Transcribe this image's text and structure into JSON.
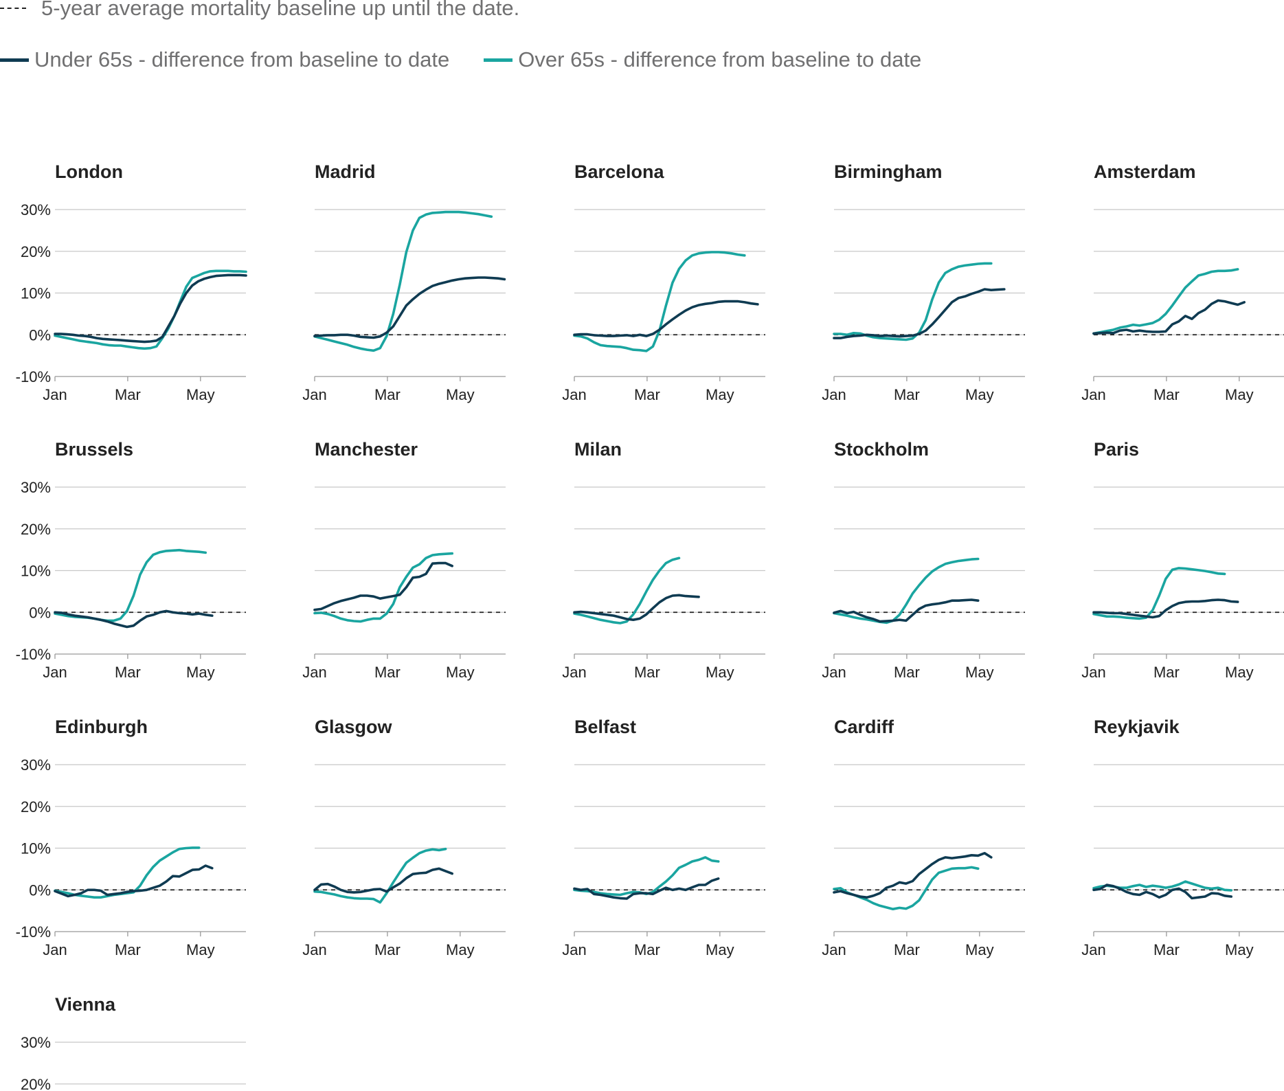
{
  "legend": {
    "baseline_label": "5-year average mortality baseline up until the date.",
    "under65_label": "Under 65s - difference from baseline to date",
    "over65_label": "Over 65s - difference from baseline to date"
  },
  "colors": {
    "under65": "#0f3b52",
    "over65": "#1aa5a0",
    "baseline": "#222222",
    "grid": "#c8c8c8"
  },
  "chart_data": {
    "type": "line",
    "layout": "small-multiples",
    "x_unit": "week of year",
    "ylim": [
      -10,
      30
    ],
    "ytick_labels": [
      "30%",
      "20%",
      "10%",
      "0%",
      "-10%"
    ],
    "yticks": [
      30,
      20,
      10,
      0,
      -10
    ],
    "xtick_labels": [
      "Jan",
      "Mar",
      "May"
    ],
    "xticks": [
      1,
      9,
      17
    ],
    "xlim": [
      1,
      22
    ],
    "grid": true,
    "series_names": [
      "Under 65s - difference from baseline to date",
      "Over 65s - difference from baseline to date"
    ],
    "panels": [
      {
        "title": "London",
        "under65": [
          0.2,
          0.2,
          0.1,
          0,
          -0.2,
          -0.3,
          -0.5,
          -0.8,
          -1,
          -1.1,
          -1.2,
          -1.3,
          -1.4,
          -1.5,
          -1.6,
          -1.7,
          -1.6,
          -1.4,
          -0.5,
          2,
          4.5,
          7.5,
          10,
          11.8,
          12.8,
          13.4,
          13.8,
          14.1,
          14.2,
          14.3,
          14.3,
          14.3,
          14.2
        ],
        "over65": [
          -0.2,
          -0.5,
          -0.8,
          -1.1,
          -1.4,
          -1.6,
          -1.8,
          -2,
          -2.3,
          -2.5,
          -2.6,
          -2.6,
          -2.8,
          -3,
          -3.2,
          -3.3,
          -3.2,
          -2.8,
          -0.8,
          1.5,
          4.5,
          8,
          11.5,
          13.6,
          14.2,
          14.8,
          15.2,
          15.3,
          15.3,
          15.3,
          15.2,
          15.2,
          15.1
        ]
      },
      {
        "title": "Madrid",
        "under65": [
          -0.3,
          -0.2,
          -0.1,
          -0.1,
          0,
          0,
          -0.2,
          -0.5,
          -0.6,
          -0.7,
          -0.4,
          0.5,
          2,
          4.5,
          7,
          8.5,
          9.8,
          10.8,
          11.7,
          12.2,
          12.6,
          13,
          13.3,
          13.5,
          13.6,
          13.7,
          13.7,
          13.6,
          13.5,
          13.3
        ],
        "over65": [
          -0.4,
          -0.8,
          -1.2,
          -1.6,
          -2,
          -2.4,
          -2.9,
          -3.3,
          -3.6,
          -3.8,
          -3.2,
          -0.3,
          5,
          12,
          19.8,
          25,
          28,
          28.8,
          29.2,
          29.3,
          29.4,
          29.4,
          29.4,
          29.3,
          29.1,
          28.9,
          28.6,
          28.3
        ],
        "note": "series ends around week 21"
      },
      {
        "title": "Barcelona",
        "under65": [
          0,
          0.1,
          0.1,
          -0.1,
          -0.2,
          -0.3,
          -0.3,
          -0.2,
          -0.1,
          -0.3,
          0,
          -0.3,
          0.2,
          1.2,
          2.5,
          3.7,
          4.8,
          5.8,
          6.6,
          7.1,
          7.4,
          7.6,
          7.9,
          8,
          8,
          8,
          7.8,
          7.5,
          7.3
        ],
        "over65": [
          -0.2,
          -0.4,
          -0.9,
          -1.8,
          -2.5,
          -2.7,
          -2.8,
          -2.9,
          -3.2,
          -3.6,
          -3.7,
          -3.9,
          -2.8,
          1,
          7,
          12.5,
          15.8,
          17.8,
          19,
          19.5,
          19.7,
          19.8,
          19.8,
          19.7,
          19.5,
          19.2,
          19
        ]
      },
      {
        "title": "Birmingham",
        "under65": [
          -0.8,
          -0.8,
          -0.5,
          -0.3,
          -0.2,
          0,
          -0.1,
          -0.3,
          -0.2,
          -0.3,
          -0.4,
          -0.3,
          -0.2,
          0.2,
          1,
          2.5,
          4.2,
          6,
          7.8,
          8.8,
          9.2,
          9.8,
          10.3,
          10.9,
          10.7,
          10.8,
          10.9
        ],
        "over65": [
          0.2,
          0.2,
          0,
          0.4,
          0.3,
          -0.2,
          -0.6,
          -0.8,
          -0.9,
          -1,
          -1.1,
          -1.2,
          -0.9,
          0.5,
          3.5,
          8.5,
          12.5,
          14.8,
          15.7,
          16.3,
          16.6,
          16.8,
          17,
          17.1,
          17.1
        ]
      },
      {
        "title": "Amsterdam",
        "under65": [
          0.3,
          0.4,
          0.5,
          0.4,
          1,
          1.2,
          0.8,
          1,
          0.8,
          0.7,
          0.7,
          0.8,
          2.5,
          3.2,
          4.5,
          3.8,
          5.2,
          6,
          7.4,
          8.2,
          8,
          7.6,
          7.2,
          7.8
        ],
        "over65": [
          0.3,
          0.6,
          0.9,
          1.2,
          1.7,
          2,
          2.4,
          2.2,
          2.5,
          2.8,
          3.6,
          5,
          7,
          9.2,
          11.3,
          12.8,
          14.2,
          14.6,
          15.1,
          15.3,
          15.3,
          15.4,
          15.7
        ]
      },
      {
        "title": "Brussels",
        "under65": [
          0,
          -0.1,
          -0.5,
          -0.8,
          -1,
          -1.2,
          -1.5,
          -1.8,
          -2.2,
          -2.7,
          -3.1,
          -3.5,
          -3.2,
          -2,
          -1,
          -0.6,
          0,
          0.3,
          0,
          -0.2,
          -0.3,
          -0.5,
          -0.3,
          -0.6,
          -0.8
        ],
        "over65": [
          -0.3,
          -0.6,
          -0.9,
          -1.1,
          -1.2,
          -1.3,
          -1.5,
          -1.8,
          -2,
          -2,
          -1.5,
          0.3,
          4,
          9,
          12,
          13.8,
          14.4,
          14.7,
          14.8,
          14.9,
          14.7,
          14.6,
          14.5,
          14.3
        ]
      },
      {
        "title": "Manchester",
        "under65": [
          0.6,
          0.8,
          1.5,
          2.2,
          2.7,
          3.1,
          3.5,
          4,
          4,
          3.8,
          3.3,
          3.6,
          3.9,
          4.2,
          6,
          8.3,
          8.5,
          9.2,
          11.7,
          11.8,
          11.8,
          11.1
        ],
        "over65": [
          -0.2,
          -0.1,
          -0.4,
          -0.9,
          -1.5,
          -1.9,
          -2.1,
          -2.2,
          -1.8,
          -1.5,
          -1.5,
          -0.3,
          2,
          6,
          8.5,
          10.7,
          11.5,
          13,
          13.7,
          13.9,
          14,
          14.1
        ]
      },
      {
        "title": "Milan",
        "under65": [
          0,
          0.1,
          0,
          -0.2,
          -0.4,
          -0.6,
          -0.8,
          -1.2,
          -1.6,
          -1.8,
          -1.5,
          -0.5,
          1,
          2.4,
          3.4,
          4,
          4.1,
          3.9,
          3.8,
          3.7
        ],
        "over65": [
          -0.3,
          -0.6,
          -1,
          -1.4,
          -1.8,
          -2.1,
          -2.4,
          -2.6,
          -2.2,
          -0.5,
          2,
          5,
          7.8,
          10,
          11.8,
          12.6,
          13
        ]
      },
      {
        "title": "Stockholm",
        "under65": [
          -0.1,
          0.3,
          -0.2,
          0.1,
          -0.6,
          -1.2,
          -1.6,
          -2.2,
          -2.1,
          -2,
          -1.8,
          -2,
          -0.6,
          0.8,
          1.6,
          1.9,
          2.1,
          2.4,
          2.8,
          2.8,
          2.9,
          3,
          2.8
        ],
        "over65": [
          -0.2,
          -0.5,
          -0.8,
          -1.2,
          -1.5,
          -1.7,
          -2,
          -2.3,
          -2.5,
          -2,
          -0.6,
          1.8,
          4.5,
          6.5,
          8.3,
          9.8,
          10.8,
          11.6,
          12,
          12.3,
          12.5,
          12.7,
          12.8
        ]
      },
      {
        "title": "Paris",
        "under65": [
          0,
          0,
          -0.1,
          -0.2,
          -0.2,
          -0.4,
          -0.6,
          -0.8,
          -1,
          -1.2,
          -0.9,
          0.5,
          1.5,
          2.2,
          2.5,
          2.6,
          2.6,
          2.7,
          2.9,
          3,
          2.9,
          2.6,
          2.5
        ],
        "over65": [
          -0.4,
          -0.7,
          -1,
          -1,
          -1.1,
          -1.3,
          -1.4,
          -1.5,
          -1.3,
          0.5,
          4,
          8,
          10.2,
          10.6,
          10.5,
          10.3,
          10.1,
          9.9,
          9.6,
          9.3,
          9.2
        ]
      },
      {
        "title": "Edinburgh",
        "under65": [
          -0.3,
          -0.9,
          -1.5,
          -1.2,
          -0.8,
          0,
          0,
          -0.2,
          -1.2,
          -1,
          -0.8,
          -0.5,
          -0.3,
          -0.2,
          0,
          0.5,
          1,
          2,
          3.3,
          3.2,
          4,
          4.8,
          4.9,
          5.8,
          5.2
        ],
        "over65": [
          -0.2,
          -0.5,
          -0.8,
          -1.2,
          -1.4,
          -1.6,
          -1.8,
          -1.8,
          -1.5,
          -1.2,
          -1,
          -0.8,
          -0.6,
          1,
          3.5,
          5.5,
          7,
          8,
          9,
          9.8,
          10,
          10.1,
          10.1
        ]
      },
      {
        "title": "Glasgow",
        "under65": [
          0,
          1.3,
          1.4,
          0.8,
          0,
          -0.5,
          -0.6,
          -0.5,
          -0.2,
          0.1,
          0.2,
          -0.4,
          0.6,
          1.5,
          2.8,
          3.8,
          4,
          4.1,
          4.8,
          5.1,
          4.5,
          3.9
        ],
        "over65": [
          -0.4,
          -0.5,
          -0.8,
          -1.1,
          -1.5,
          -1.8,
          -2,
          -2.1,
          -2.1,
          -2.2,
          -3,
          -0.8,
          1.8,
          4.2,
          6.5,
          7.7,
          8.8,
          9.4,
          9.7,
          9.5,
          9.8
        ]
      },
      {
        "title": "Belfast",
        "under65": [
          0.3,
          0,
          0.2,
          -1,
          -1.2,
          -1.5,
          -1.8,
          -2,
          -2.1,
          -1,
          -0.8,
          -0.8,
          -1,
          -0.2,
          0.5,
          0,
          0.3,
          0,
          0.6,
          1.2,
          1.2,
          2.2,
          2.7
        ],
        "over65": [
          0,
          -0.2,
          -0.3,
          -0.5,
          -0.8,
          -1,
          -1.1,
          -1.2,
          -0.8,
          -0.5,
          -0.6,
          -1,
          -0.5,
          0.8,
          2,
          3.5,
          5.3,
          6,
          6.8,
          7.2,
          7.8,
          7,
          6.8
        ]
      },
      {
        "title": "Cardiff",
        "under65": [
          -0.6,
          -0.3,
          -0.8,
          -1.2,
          -1.6,
          -1.8,
          -1.4,
          -0.8,
          0.5,
          1,
          1.8,
          1.5,
          2.1,
          3.8,
          5,
          6.2,
          7.2,
          7.8,
          7.6,
          7.8,
          8,
          8.3,
          8.2,
          8.8,
          7.8
        ],
        "over65": [
          0.2,
          0.4,
          -0.6,
          -1.2,
          -1.8,
          -2.4,
          -3.2,
          -3.8,
          -4.2,
          -4.6,
          -4.3,
          -4.5,
          -3.8,
          -2.5,
          0,
          2.5,
          4.1,
          4.6,
          5.1,
          5.2,
          5.2,
          5.4,
          5.1
        ]
      },
      {
        "title": "Reykjavik",
        "under65": [
          0,
          0.2,
          1.2,
          0.9,
          0.3,
          -0.5,
          -1,
          -1.2,
          -0.5,
          -1,
          -1.8,
          -1.2,
          0,
          0.3,
          -0.5,
          -2,
          -1.8,
          -1.6,
          -0.8,
          -0.9,
          -1.4,
          -1.6
        ],
        "over65": [
          0.4,
          0.8,
          1,
          0.8,
          0.5,
          0.5,
          0.9,
          1.2,
          0.7,
          1,
          0.8,
          0.5,
          0.8,
          1.3,
          2,
          1.5,
          1,
          0.5,
          0.3,
          0.5,
          0,
          -0.1
        ]
      },
      {
        "title": "Vienna",
        "under65": [],
        "over65": [],
        "note": "panel cropped at bottom of image"
      }
    ]
  }
}
